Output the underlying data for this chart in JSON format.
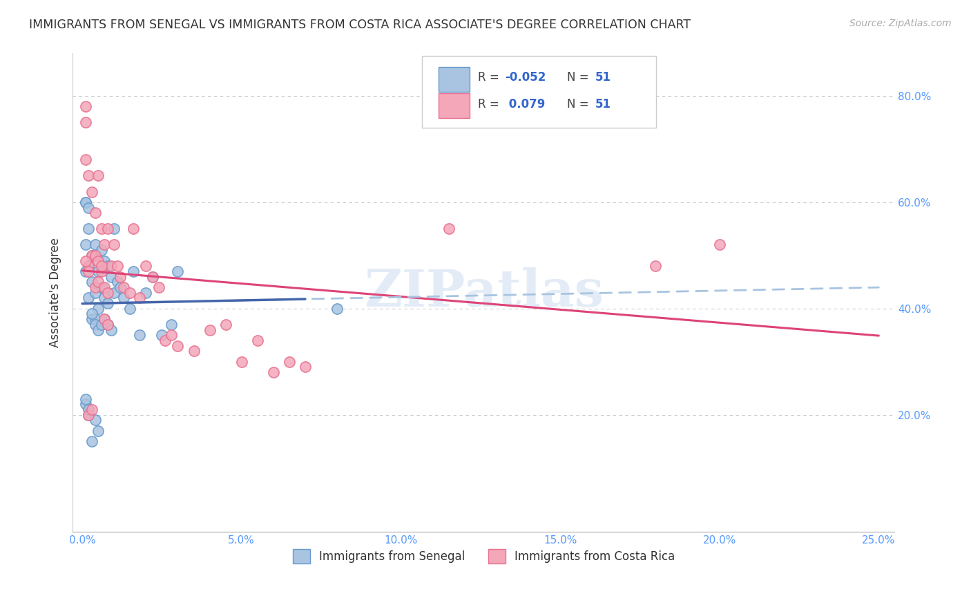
{
  "title": "IMMIGRANTS FROM SENEGAL VS IMMIGRANTS FROM COSTA RICA ASSOCIATE'S DEGREE CORRELATION CHART",
  "source": "Source: ZipAtlas.com",
  "ylabel": "Associate's Degree",
  "xlim": [
    -0.003,
    0.255
  ],
  "ylim": [
    -0.02,
    0.88
  ],
  "xtick_labels": [
    "0.0%",
    "5.0%",
    "10.0%",
    "15.0%",
    "20.0%",
    "25.0%"
  ],
  "xtick_values": [
    0.0,
    0.05,
    0.1,
    0.15,
    0.2,
    0.25
  ],
  "ytick_labels": [
    "20.0%",
    "40.0%",
    "60.0%",
    "80.0%"
  ],
  "ytick_values": [
    0.2,
    0.4,
    0.6,
    0.8
  ],
  "blue_color": "#a8c4e0",
  "pink_color": "#f4a7b9",
  "blue_edge": "#6699cc",
  "pink_edge": "#e87090",
  "trend_blue_solid_color": "#4466aa",
  "trend_blue_dash_color": "#a8c4e0",
  "trend_pink_color": "#dd4477",
  "watermark": "ZIPatlas",
  "senegal_label": "Immigrants from Senegal",
  "costarica_label": "Immigrants from Costa Rica",
  "legend_r1": "-0.052",
  "legend_r2": "0.079",
  "legend_n": "51",
  "senegal_x": [
    0.001,
    0.001,
    0.001,
    0.002,
    0.002,
    0.002,
    0.003,
    0.003,
    0.003,
    0.004,
    0.004,
    0.004,
    0.005,
    0.005,
    0.006,
    0.006,
    0.007,
    0.007,
    0.008,
    0.008,
    0.009,
    0.01,
    0.01,
    0.011,
    0.012,
    0.013,
    0.015,
    0.016,
    0.018,
    0.02,
    0.022,
    0.025,
    0.028,
    0.03,
    0.001,
    0.002,
    0.003,
    0.004,
    0.005,
    0.006,
    0.007,
    0.008,
    0.009,
    0.001,
    0.002,
    0.003,
    0.004,
    0.005,
    0.001,
    0.002,
    0.08
  ],
  "senegal_y": [
    0.47,
    0.52,
    0.6,
    0.55,
    0.48,
    0.42,
    0.5,
    0.45,
    0.38,
    0.52,
    0.43,
    0.38,
    0.47,
    0.4,
    0.51,
    0.44,
    0.49,
    0.42,
    0.48,
    0.41,
    0.46,
    0.55,
    0.43,
    0.45,
    0.44,
    0.42,
    0.4,
    0.47,
    0.35,
    0.43,
    0.46,
    0.35,
    0.37,
    0.47,
    0.22,
    0.2,
    0.39,
    0.37,
    0.36,
    0.37,
    0.38,
    0.37,
    0.36,
    0.23,
    0.21,
    0.15,
    0.19,
    0.17,
    0.6,
    0.59,
    0.4
  ],
  "costarica_x": [
    0.001,
    0.001,
    0.002,
    0.002,
    0.003,
    0.003,
    0.004,
    0.004,
    0.005,
    0.005,
    0.006,
    0.006,
    0.007,
    0.007,
    0.008,
    0.008,
    0.009,
    0.01,
    0.011,
    0.012,
    0.013,
    0.015,
    0.016,
    0.018,
    0.02,
    0.022,
    0.024,
    0.026,
    0.028,
    0.03,
    0.035,
    0.04,
    0.045,
    0.05,
    0.055,
    0.06,
    0.065,
    0.07,
    0.002,
    0.003,
    0.004,
    0.005,
    0.006,
    0.007,
    0.008,
    0.001,
    0.002,
    0.115,
    0.001,
    0.18,
    0.2
  ],
  "costarica_y": [
    0.75,
    0.68,
    0.65,
    0.48,
    0.62,
    0.5,
    0.58,
    0.44,
    0.65,
    0.45,
    0.55,
    0.47,
    0.52,
    0.44,
    0.55,
    0.43,
    0.48,
    0.52,
    0.48,
    0.46,
    0.44,
    0.43,
    0.55,
    0.42,
    0.48,
    0.46,
    0.44,
    0.34,
    0.35,
    0.33,
    0.32,
    0.36,
    0.37,
    0.3,
    0.34,
    0.28,
    0.3,
    0.29,
    0.2,
    0.21,
    0.5,
    0.49,
    0.48,
    0.38,
    0.37,
    0.78,
    0.47,
    0.55,
    0.49,
    0.48,
    0.52
  ]
}
